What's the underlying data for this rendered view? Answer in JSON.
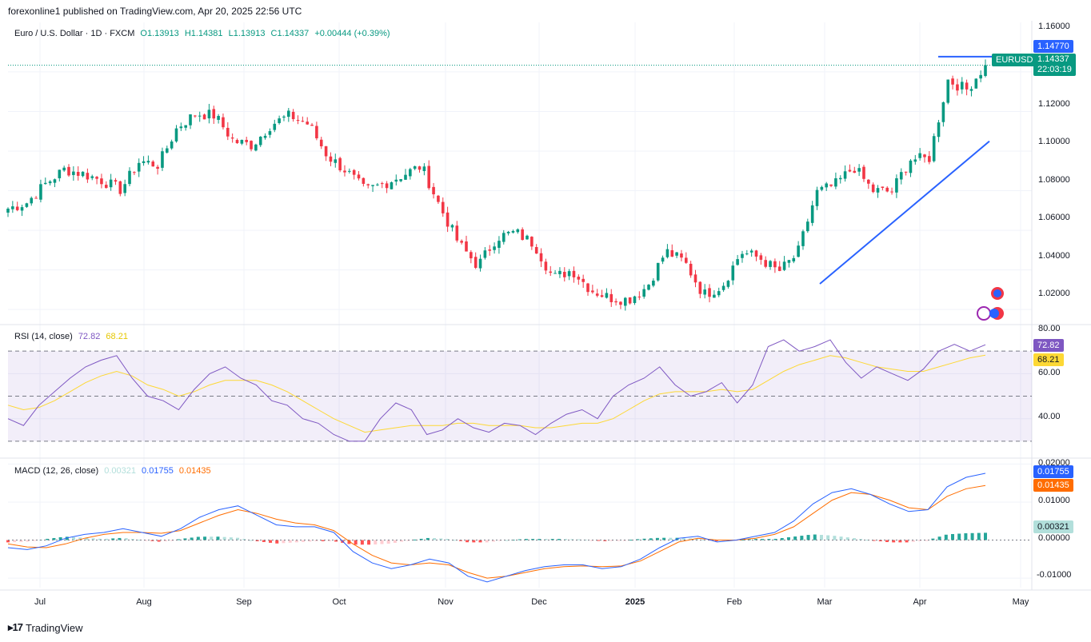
{
  "header": {
    "publish_text": "forexonline1 published on TradingView.com, Apr 20, 2025 22:56 UTC"
  },
  "main": {
    "symbol_title": "Euro / U.S. Dollar · 1D · FXCM",
    "open": "O1.13913",
    "high": "H1.14381",
    "low": "L1.13913",
    "close": "C1.14337",
    "change": "+0.00444 (+0.39%)",
    "symbol_tag": "EURUSD",
    "price_tag": "1.14337",
    "countdown_tag": "22:03:19",
    "level_tag": "1.14770"
  },
  "rsi": {
    "title": "RSI (14, close)",
    "value": "72.82",
    "ma_value": "68.21"
  },
  "macd": {
    "title": "MACD (12, 26, close)",
    "hist_value": "0.00321",
    "macd_value": "0.01755",
    "signal_value": "0.01435"
  },
  "colors": {
    "up": "#089981",
    "down": "#f23645",
    "rsi_line": "#7e57c2",
    "rsi_ma": "#fdd835",
    "macd_line": "#2962ff",
    "signal_line": "#ff6d00",
    "trendline": "#2962ff"
  },
  "footer": {
    "brand": "TradingView"
  },
  "chart_data": [
    {
      "type": "candlestick",
      "title": "Euro / U.S. Dollar · 1D · FXCM",
      "x_ticks": [
        "Jul",
        "Aug",
        "Sep",
        "Oct",
        "Nov",
        "Dec",
        "2025",
        "Feb",
        "Mar",
        "Apr",
        "May"
      ],
      "y_ticks": [
        "1.02000",
        "1.04000",
        "1.06000",
        "1.08000",
        "1.10000",
        "1.12000",
        "1.16000"
      ],
      "ylim": [
        1.0128,
        1.165
      ],
      "series": [
        {
          "name": "EURUSD",
          "x": [
            "Jun 25",
            "Jul 01",
            "Jul 05",
            "Jul 12",
            "Jul 19",
            "Jul 26",
            "Aug 01",
            "Aug 05",
            "Aug 12",
            "Aug 19",
            "Aug 23",
            "Aug 26",
            "Sep 03",
            "Sep 10",
            "Sep 17",
            "Sep 25",
            "Sep 30",
            "Oct 07",
            "Oct 14",
            "Oct 21",
            "Oct 24",
            "Oct 31",
            "Nov 05",
            "Nov 10",
            "Nov 14",
            "Nov 22",
            "Nov 27",
            "Dec 05",
            "Dec 09",
            "Dec 18",
            "Dec 30",
            "Jan 03",
            "Jan 10",
            "Jan 13",
            "Jan 17",
            "Jan 24",
            "Jan 30",
            "Feb 03",
            "Feb 07",
            "Feb 14",
            "Feb 21",
            "Feb 28",
            "Mar 03",
            "Mar 05",
            "Mar 10",
            "Mar 18",
            "Mar 27",
            "Apr 01",
            "Apr 04",
            "Apr 08",
            "Apr 11",
            "Apr 14",
            "Apr 18"
          ],
          "close": [
            1.071,
            1.074,
            1.0835,
            1.0908,
            1.0885,
            1.0852,
            1.0805,
            1.095,
            1.093,
            1.112,
            1.119,
            1.118,
            1.105,
            1.103,
            1.1135,
            1.118,
            1.1135,
            1.0975,
            1.09,
            1.08,
            1.0835,
            1.088,
            1.0925,
            1.0715,
            1.053,
            1.042,
            1.0565,
            1.059,
            1.053,
            1.036,
            1.04,
            1.03,
            1.026,
            1.025,
            1.0315,
            1.0495,
            1.044,
            1.0275,
            1.032,
            1.049,
            1.046,
            1.039,
            1.048,
            1.079,
            1.083,
            1.092,
            1.08,
            1.0795,
            1.096,
            1.096,
            1.136,
            1.131,
            1.1434
          ]
        }
      ],
      "resistance_level": 1.1477,
      "trendline": {
        "x": [
          "Feb 28",
          "Apr 21"
        ],
        "y": [
          1.033,
          1.105
        ]
      }
    },
    {
      "type": "line",
      "title": "RSI (14, close)",
      "y_ticks": [
        "40.00",
        "60.00",
        "80.00"
      ],
      "ylim": [
        25,
        80
      ],
      "bands": [
        30,
        50,
        70
      ],
      "series": [
        {
          "name": "RSI",
          "values": [
            40,
            37,
            46,
            52,
            58,
            63,
            66,
            68,
            58,
            50,
            48,
            44,
            53,
            60,
            63,
            58,
            55,
            48,
            46,
            40,
            38,
            33,
            30,
            30,
            40,
            47,
            44,
            33,
            35,
            40,
            36,
            34,
            38,
            37,
            33,
            38,
            42,
            44,
            40,
            50,
            55,
            58,
            63,
            55,
            50,
            52,
            56,
            47,
            55,
            72,
            75,
            70,
            72,
            75,
            65,
            58,
            63,
            60,
            57,
            62,
            70,
            73,
            70,
            72.82
          ]
        },
        {
          "name": "RSI-based MA",
          "values": [
            46,
            44,
            45,
            48,
            52,
            56,
            59,
            61,
            59,
            55,
            53,
            50,
            52,
            55,
            57,
            57,
            57,
            55,
            52,
            48,
            44,
            40,
            37,
            34,
            35,
            36,
            37,
            37,
            37,
            38,
            38,
            37,
            37,
            37,
            36,
            36,
            37,
            38,
            38,
            40,
            44,
            48,
            51,
            52,
            52,
            52,
            53,
            52,
            53,
            57,
            61,
            64,
            66,
            68,
            67,
            65,
            63,
            62,
            61,
            61,
            63,
            65,
            67,
            68.21
          ]
        }
      ]
    },
    {
      "type": "line",
      "title": "MACD (12, 26, close)",
      "y_ticks": [
        "-0.01000",
        "0.00000",
        "0.01000",
        "0.02000"
      ],
      "ylim": [
        -0.0125,
        0.0205
      ],
      "series": [
        {
          "name": "MACD",
          "values": [
            -0.002,
            -0.0025,
            -0.0015,
            0.0005,
            0.0015,
            0.002,
            0.003,
            0.002,
            0.001,
            0.003,
            0.006,
            0.008,
            0.009,
            0.0065,
            0.004,
            0.0035,
            0.0035,
            0.002,
            -0.003,
            -0.006,
            -0.0075,
            -0.0065,
            -0.005,
            -0.006,
            -0.0095,
            -0.011,
            -0.0095,
            -0.008,
            -0.007,
            -0.0065,
            -0.0065,
            -0.0075,
            -0.007,
            -0.005,
            -0.002,
            0.0005,
            0.001,
            -0.0005,
            0.0,
            0.001,
            0.002,
            0.005,
            0.0095,
            0.0125,
            0.0135,
            0.012,
            0.0095,
            0.0075,
            0.008,
            0.014,
            0.0165,
            0.01755
          ]
        },
        {
          "name": "Signal",
          "values": [
            -0.001,
            -0.0018,
            -0.002,
            -0.001,
            0.0005,
            0.0015,
            0.002,
            0.002,
            0.0018,
            0.0025,
            0.0045,
            0.0065,
            0.008,
            0.007,
            0.0055,
            0.0045,
            0.004,
            0.0025,
            -0.001,
            -0.004,
            -0.006,
            -0.0065,
            -0.006,
            -0.0065,
            -0.0085,
            -0.01,
            -0.0095,
            -0.0085,
            -0.0075,
            -0.007,
            -0.0068,
            -0.007,
            -0.0068,
            -0.0055,
            -0.003,
            -0.0005,
            0.0005,
            0.0,
            0.0,
            0.0005,
            0.0015,
            0.0035,
            0.007,
            0.0105,
            0.0125,
            0.012,
            0.0105,
            0.0085,
            0.008,
            0.0115,
            0.0135,
            0.01435
          ]
        }
      ],
      "histogram_last": 0.00321
    }
  ]
}
